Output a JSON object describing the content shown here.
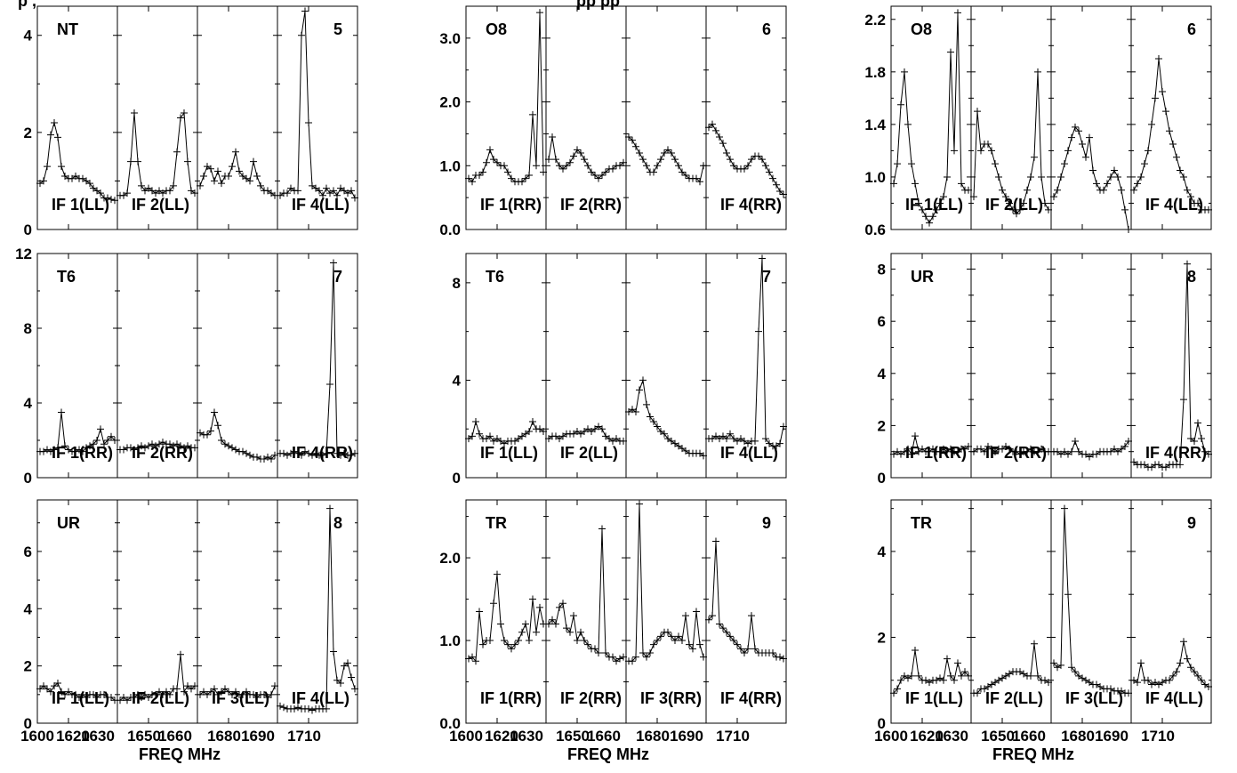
{
  "figure": {
    "title_fragments": [
      "p                              ,",
      "pp                                        pp"
    ],
    "x_axis_title": "FREQ MHz",
    "x_tick_labels": [
      "1600",
      "1620",
      "1630",
      "1650",
      "1660",
      "1680",
      "1690",
      "1710"
    ]
  },
  "chart_data": [
    {
      "type": "line",
      "station": "NT",
      "panel_number": "5",
      "if_labels": [
        "IF 1(LL)",
        "IF 2(LL)",
        "",
        "IF 4(LL)"
      ],
      "ylim": [
        0,
        4.6
      ],
      "y_ticks": [
        "0",
        "2",
        "4"
      ],
      "x_ticks_shown": false,
      "series": [
        {
          "values": [
            0.95,
            1.0,
            1.3,
            1.95,
            2.2,
            1.9,
            1.3,
            1.1,
            1.05,
            1.05,
            1.1,
            1.05,
            1.05,
            1.0,
            0.95,
            0.85,
            0.8,
            0.75,
            0.65,
            0.65,
            0.62,
            0.6
          ]
        },
        {
          "values": [
            0.7,
            0.7,
            0.75,
            1.4,
            2.4,
            1.4,
            0.9,
            0.8,
            0.85,
            0.8,
            0.75,
            0.8,
            0.75,
            0.8,
            0.8,
            0.9,
            1.6,
            2.3,
            2.4,
            1.4,
            0.8,
            0.75
          ]
        },
        {
          "values": [
            0.9,
            1.1,
            1.3,
            1.25,
            1.0,
            1.2,
            0.95,
            1.1,
            1.1,
            1.3,
            1.6,
            1.2,
            1.1,
            1.05,
            1.0,
            1.4,
            1.1,
            0.9,
            0.8,
            0.8,
            0.75,
            0.7
          ]
        },
        {
          "values": [
            0.7,
            0.75,
            0.75,
            0.85,
            0.8,
            0.8,
            4.0,
            4.5,
            2.2,
            0.9,
            0.85,
            0.8,
            0.7,
            0.85,
            0.75,
            0.8,
            0.7,
            0.85,
            0.8,
            0.75,
            0.8,
            0.65
          ]
        }
      ]
    },
    {
      "type": "line",
      "station": "O8",
      "panel_number": "6",
      "if_labels": [
        "IF 1(RR)",
        "IF 2(RR)",
        "",
        "IF 4(RR)"
      ],
      "ylim": [
        0,
        3.5
      ],
      "y_ticks": [
        "0.0",
        "1.0",
        "2.0",
        "3.0"
      ],
      "x_ticks_shown": false,
      "series": [
        {
          "values": [
            0.8,
            0.75,
            0.85,
            0.85,
            0.9,
            1.05,
            1.25,
            1.1,
            1.05,
            1.0,
            1.0,
            0.9,
            0.8,
            0.75,
            0.75,
            0.75,
            0.8,
            0.85,
            1.8,
            1.0,
            3.4,
            0.9
          ]
        },
        {
          "values": [
            1.1,
            1.45,
            1.1,
            1.0,
            0.95,
            1.0,
            1.05,
            1.15,
            1.25,
            1.2,
            1.1,
            1.0,
            0.9,
            0.85,
            0.8,
            0.85,
            0.9,
            0.95,
            0.95,
            1.0,
            1.0,
            1.05
          ]
        },
        {
          "values": [
            1.45,
            1.4,
            1.3,
            1.2,
            1.1,
            1.0,
            0.9,
            0.9,
            1.0,
            1.1,
            1.2,
            1.25,
            1.2,
            1.1,
            1.0,
            0.9,
            0.85,
            0.8,
            0.8,
            0.8,
            0.75,
            1.0
          ]
        },
        {
          "values": [
            1.6,
            1.65,
            1.55,
            1.45,
            1.35,
            1.2,
            1.1,
            1.0,
            0.95,
            0.95,
            0.95,
            1.0,
            1.1,
            1.15,
            1.15,
            1.1,
            1.0,
            0.9,
            0.8,
            0.7,
            0.6,
            0.55
          ]
        }
      ]
    },
    {
      "type": "line",
      "station": "O8",
      "panel_number": "6",
      "if_labels": [
        "IF 1(LL)",
        "IF 2(LL)",
        "",
        "IF 4(LL)"
      ],
      "ylim": [
        0.6,
        2.3
      ],
      "y_ticks": [
        "0.6",
        "1.0",
        "1.4",
        "1.8",
        "2.2"
      ],
      "x_ticks_shown": false,
      "series": [
        {
          "values": [
            0.95,
            1.1,
            1.55,
            1.8,
            1.4,
            1.1,
            0.95,
            0.8,
            0.75,
            0.7,
            0.65,
            0.7,
            0.75,
            0.8,
            0.85,
            1.0,
            1.95,
            1.2,
            2.25,
            0.95,
            0.9,
            0.9
          ]
        },
        {
          "values": [
            0.85,
            1.5,
            1.2,
            1.25,
            1.25,
            1.2,
            1.1,
            1.0,
            0.9,
            0.85,
            0.8,
            0.75,
            0.72,
            0.75,
            0.8,
            0.9,
            1.0,
            1.15,
            1.8,
            1.0,
            0.8,
            0.75
          ]
        },
        {
          "values": [
            0.85,
            0.9,
            1.0,
            1.1,
            1.2,
            1.3,
            1.38,
            1.35,
            1.25,
            1.15,
            1.3,
            1.05,
            0.95,
            0.9,
            0.9,
            0.95,
            1.0,
            1.05,
            1.0,
            0.9,
            0.75,
            0.6
          ]
        },
        {
          "values": [
            0.9,
            0.95,
            1.0,
            1.1,
            1.2,
            1.4,
            1.6,
            1.9,
            1.65,
            1.5,
            1.35,
            1.25,
            1.15,
            1.05,
            1.0,
            0.9,
            0.85,
            0.8,
            0.8,
            0.75,
            0.75,
            0.75
          ]
        }
      ]
    },
    {
      "type": "line",
      "station": "T6",
      "panel_number": "7",
      "if_labels": [
        "IF 1(RR)",
        "IF 2(RR)",
        "",
        "IF 4(RR)"
      ],
      "ylim": [
        0,
        12
      ],
      "y_ticks": [
        "0",
        "4",
        "8",
        "12"
      ],
      "x_ticks_shown": false,
      "series": [
        {
          "values": [
            1.4,
            1.4,
            1.5,
            1.4,
            1.5,
            1.6,
            3.5,
            1.7,
            1.5,
            1.4,
            1.4,
            1.5,
            1.4,
            1.6,
            1.7,
            1.8,
            2.0,
            2.6,
            1.8,
            2.0,
            2.2,
            2.0
          ]
        },
        {
          "values": [
            1.5,
            1.5,
            1.6,
            1.6,
            1.5,
            1.6,
            1.7,
            1.6,
            1.7,
            1.8,
            1.7,
            1.8,
            1.9,
            1.8,
            1.8,
            1.7,
            1.8,
            1.7,
            1.6,
            1.7,
            1.6,
            1.6
          ]
        },
        {
          "values": [
            2.4,
            2.3,
            2.3,
            2.5,
            3.5,
            2.8,
            2.0,
            1.8,
            1.7,
            1.6,
            1.5,
            1.4,
            1.4,
            1.3,
            1.2,
            1.1,
            1.1,
            1.0,
            1.0,
            1.1,
            1.0,
            1.2
          ]
        },
        {
          "values": [
            1.3,
            1.3,
            1.2,
            1.3,
            1.4,
            1.3,
            1.2,
            1.4,
            1.3,
            1.2,
            1.3,
            1.2,
            1.2,
            1.3,
            5.0,
            11.5,
            1.3,
            1.2,
            1.3,
            1.2,
            1.2,
            1.3
          ]
        }
      ]
    },
    {
      "type": "line",
      "station": "T6",
      "panel_number": "7",
      "if_labels": [
        "IF 1(LL)",
        "IF 2(LL)",
        "",
        "IF 4(LL)"
      ],
      "ylim": [
        0,
        9.2
      ],
      "y_ticks": [
        "0",
        "4",
        "8"
      ],
      "x_ticks_shown": false,
      "series": [
        {
          "values": [
            1.6,
            1.7,
            2.3,
            1.8,
            1.6,
            1.6,
            1.7,
            1.5,
            1.6,
            1.5,
            1.4,
            1.5,
            1.5,
            1.5,
            1.6,
            1.7,
            1.8,
            1.9,
            2.3,
            2.0,
            2.0,
            1.9
          ]
        },
        {
          "values": [
            1.6,
            1.7,
            1.7,
            1.6,
            1.7,
            1.8,
            1.8,
            1.8,
            1.9,
            1.8,
            1.9,
            2.0,
            1.9,
            2.0,
            2.1,
            2.0,
            1.7,
            1.6,
            1.5,
            1.6,
            1.5,
            1.5
          ]
        },
        {
          "values": [
            2.7,
            2.8,
            2.7,
            3.6,
            4.0,
            3.0,
            2.5,
            2.3,
            2.1,
            1.9,
            1.8,
            1.6,
            1.5,
            1.4,
            1.3,
            1.2,
            1.1,
            1.0,
            1.0,
            1.0,
            1.0,
            0.9
          ]
        },
        {
          "values": [
            1.6,
            1.6,
            1.7,
            1.6,
            1.7,
            1.6,
            1.8,
            1.6,
            1.5,
            1.6,
            1.5,
            1.4,
            1.5,
            1.5,
            6.0,
            9.0,
            1.6,
            1.4,
            1.3,
            1.3,
            1.4,
            2.1
          ]
        }
      ]
    },
    {
      "type": "line",
      "station": "UR",
      "panel_number": "8",
      "if_labels": [
        "IF 1(RR)",
        "IF 2(RR)",
        "",
        "IF 4(RR)"
      ],
      "ylim": [
        0,
        8.6
      ],
      "y_ticks": [
        "0",
        "2",
        "4",
        "6",
        "8"
      ],
      "x_ticks_shown": false,
      "series": [
        {
          "values": [
            0.9,
            1.0,
            0.9,
            1.0,
            1.1,
            0.9,
            1.6,
            1.0,
            1.1,
            1.0,
            1.0,
            1.1,
            1.0,
            1.0,
            1.1,
            1.0,
            1.1,
            1.0,
            1.0,
            1.1,
            1.1,
            1.2
          ]
        },
        {
          "values": [
            1.0,
            1.1,
            1.1,
            1.0,
            1.2,
            1.1,
            1.0,
            1.1,
            1.1,
            1.2,
            1.1,
            1.0,
            1.0,
            0.9,
            1.0,
            1.0,
            1.1,
            1.0,
            1.0,
            1.1,
            1.0,
            1.0
          ]
        },
        {
          "values": [
            1.0,
            1.0,
            0.9,
            1.0,
            0.9,
            1.0,
            1.4,
            1.0,
            0.9,
            0.9,
            0.8,
            0.9,
            0.9,
            1.0,
            1.0,
            1.0,
            1.0,
            1.1,
            1.0,
            1.1,
            1.2,
            1.4
          ]
        },
        {
          "values": [
            0.6,
            0.5,
            0.5,
            0.5,
            0.4,
            0.4,
            0.5,
            0.5,
            0.4,
            0.4,
            0.5,
            0.5,
            0.5,
            0.5,
            3.0,
            8.2,
            1.5,
            1.4,
            2.1,
            1.5,
            1.0,
            0.9
          ]
        }
      ]
    },
    {
      "type": "line",
      "station": "UR",
      "panel_number": "8",
      "if_labels": [
        "IF 1(LL)",
        "IF 2(LL)",
        "IF 3(LL)",
        "IF 4(LL)"
      ],
      "ylim": [
        0,
        7.8
      ],
      "y_ticks": [
        "0",
        "2",
        "4",
        "6"
      ],
      "x_ticks_shown": true,
      "series": [
        {
          "values": [
            1.2,
            1.3,
            1.2,
            1.1,
            1.3,
            1.4,
            1.1,
            1.0,
            1.1,
            1.0,
            1.0,
            0.9,
            1.0,
            0.9,
            1.0,
            1.0,
            0.9,
            1.0,
            1.0,
            0.9,
            0.9,
            0.8
          ]
        },
        {
          "values": [
            0.8,
            0.9,
            0.8,
            0.9,
            0.9,
            1.0,
            0.9,
            1.0,
            0.9,
            1.0,
            1.0,
            1.1,
            1.0,
            1.1,
            1.0,
            1.2,
            1.2,
            2.4,
            1.1,
            1.3,
            1.2,
            1.3
          ]
        },
        {
          "values": [
            1.0,
            1.1,
            1.0,
            1.1,
            1.2,
            1.0,
            1.1,
            1.2,
            1.1,
            1.0,
            1.1,
            1.0,
            1.0,
            1.1,
            1.0,
            1.0,
            0.9,
            1.0,
            1.0,
            0.9,
            1.0,
            1.3
          ]
        },
        {
          "values": [
            0.6,
            0.55,
            0.5,
            0.5,
            0.5,
            0.55,
            0.5,
            0.5,
            0.5,
            0.45,
            0.5,
            0.5,
            0.5,
            0.5,
            7.5,
            2.5,
            1.5,
            1.4,
            2.0,
            2.1,
            1.6,
            1.2
          ]
        }
      ]
    },
    {
      "type": "line",
      "station": "TR",
      "panel_number": "9",
      "if_labels": [
        "IF 1(RR)",
        "IF 2(RR)",
        "IF 3(RR)",
        "IF 4(RR)"
      ],
      "ylim": [
        0,
        2.7
      ],
      "y_ticks": [
        "0.0",
        "1.0",
        "2.0"
      ],
      "x_ticks_shown": true,
      "series": [
        {
          "values": [
            0.78,
            0.8,
            0.75,
            1.35,
            0.95,
            1.0,
            1.0,
            1.45,
            1.8,
            1.2,
            1.0,
            0.95,
            0.9,
            0.95,
            1.0,
            1.1,
            1.2,
            1.0,
            1.5,
            1.1,
            1.4,
            1.2
          ]
        },
        {
          "values": [
            1.2,
            1.25,
            1.2,
            1.4,
            1.45,
            1.15,
            1.1,
            1.3,
            1.0,
            1.1,
            1.0,
            0.95,
            0.9,
            0.9,
            0.85,
            2.35,
            0.85,
            0.8,
            0.8,
            0.75,
            0.78,
            0.8
          ]
        },
        {
          "values": [
            0.75,
            0.75,
            0.8,
            2.65,
            0.85,
            0.8,
            0.85,
            0.95,
            1.0,
            1.05,
            1.1,
            1.1,
            1.05,
            1.0,
            1.05,
            1.0,
            1.3,
            0.95,
            0.9,
            1.35,
            0.95,
            0.8
          ]
        },
        {
          "values": [
            1.25,
            1.3,
            2.2,
            1.2,
            1.15,
            1.1,
            1.05,
            1.0,
            0.95,
            0.9,
            0.85,
            0.9,
            1.3,
            0.9,
            0.85,
            0.85,
            0.85,
            0.85,
            0.85,
            0.8,
            0.8,
            0.78
          ]
        }
      ]
    },
    {
      "type": "line",
      "station": "TR",
      "panel_number": "9",
      "if_labels": [
        "IF 1(LL)",
        "IF 2(LL)",
        "IF 3(LL)",
        "IF 4(LL)"
      ],
      "ylim": [
        0,
        5.2
      ],
      "y_ticks": [
        "0",
        "2",
        "4"
      ],
      "x_ticks_shown": true,
      "series": [
        {
          "values": [
            0.7,
            0.8,
            1.0,
            1.1,
            1.05,
            1.1,
            1.7,
            1.1,
            1.0,
            1.0,
            0.95,
            1.0,
            1.0,
            1.05,
            1.0,
            1.5,
            1.1,
            1.0,
            1.4,
            1.1,
            1.2,
            1.1
          ]
        },
        {
          "values": [
            0.7,
            0.7,
            0.8,
            0.8,
            0.85,
            0.9,
            0.95,
            1.0,
            1.05,
            1.1,
            1.15,
            1.2,
            1.2,
            1.2,
            1.15,
            1.1,
            1.1,
            1.85,
            1.1,
            1.0,
            1.0,
            0.95
          ]
        },
        {
          "values": [
            1.4,
            1.3,
            1.35,
            5.0,
            3.0,
            1.3,
            1.2,
            1.1,
            1.05,
            1.0,
            0.95,
            0.9,
            0.9,
            0.85,
            0.8,
            0.8,
            0.8,
            0.75,
            0.75,
            0.75,
            0.7,
            0.7
          ]
        },
        {
          "values": [
            1.0,
            0.95,
            1.4,
            1.0,
            1.0,
            0.9,
            0.95,
            0.9,
            0.95,
            1.0,
            1.0,
            1.1,
            1.2,
            1.4,
            1.9,
            1.5,
            1.3,
            1.2,
            1.1,
            1.0,
            0.9,
            0.85
          ]
        }
      ]
    }
  ]
}
